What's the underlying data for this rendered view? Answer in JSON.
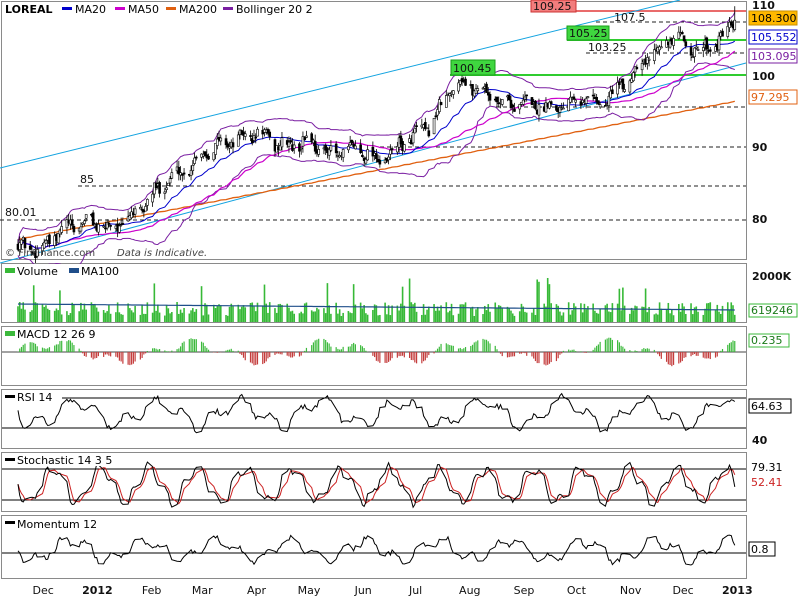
{
  "window": {
    "watermark": "© FinFinance.com",
    "notice": "Data is Indicative."
  },
  "x_axis": {
    "labels": [
      "Dec",
      "2012",
      "Feb",
      "Mar",
      "Apr",
      "May",
      "Jun",
      "Jul",
      "Aug",
      "Sep",
      "Oct",
      "Nov",
      "Dec",
      "2013"
    ],
    "bold_labels": [
      "2012",
      "2013"
    ]
  },
  "colors": {
    "ma20": "#0000cc",
    "ma50": "#cc00cc",
    "ma200": "#e06010",
    "bollinger": "#7a1fa2",
    "channel": "#13a3e0",
    "resistance": "#2fcc2f",
    "volume": "#37b937",
    "macd_pos": "#3cb93c",
    "macd_neg": "#c43c3c",
    "stoch_slow": "#cc2222"
  },
  "chart_data": [
    {
      "type": "candlestick",
      "title": "LOREAL",
      "legend": [
        "LOREAL",
        "MA20",
        "MA50",
        "MA200",
        "Bollinger 20 2"
      ],
      "legend_placement": "top-left",
      "ylim": [
        76,
        110.5
      ],
      "y_ticks": [
        80,
        90,
        100,
        110
      ],
      "grid": false,
      "series": [
        {
          "name": "LOREAL",
          "x": [
            "2011-11-26",
            "2011-12-10",
            "2011-12-24",
            "2012-01-07",
            "2012-01-21",
            "2012-02-04",
            "2012-02-18",
            "2012-03-03",
            "2012-03-17",
            "2012-03-31",
            "2012-04-14",
            "2012-04-28",
            "2012-05-12",
            "2012-05-26",
            "2012-06-09",
            "2012-06-23",
            "2012-07-07",
            "2012-07-21",
            "2012-08-04",
            "2012-08-18",
            "2012-09-01",
            "2012-09-15",
            "2012-09-29",
            "2012-10-13",
            "2012-10-27",
            "2012-11-10",
            "2012-11-24",
            "2012-12-08",
            "2012-12-22",
            "2013-01-05",
            "2013-01-12"
          ],
          "close": [
            78,
            77,
            80,
            81,
            80,
            82,
            86,
            88,
            91,
            92,
            93,
            91,
            92,
            90,
            91,
            89,
            92,
            94,
            100,
            99,
            97,
            97,
            96.5,
            98,
            97,
            100,
            104,
            106,
            104,
            106,
            108.3
          ]
        },
        {
          "name": "MA20",
          "last": 105.552
        },
        {
          "name": "MA50",
          "last": 103.095
        },
        {
          "name": "MA200",
          "last": 97.295
        }
      ],
      "levels": [
        {
          "label": "109.25",
          "boxed": true
        },
        {
          "label": "107.5",
          "boxed": false
        },
        {
          "label": "105.25",
          "boxed": true
        },
        {
          "label": "103.25",
          "boxed": false
        },
        {
          "label": "100.45",
          "boxed": true
        },
        {
          "label": "85",
          "boxed": false
        },
        {
          "label": "80.01",
          "boxed": false
        }
      ],
      "price_tags": [
        "108.300",
        "105.552",
        "103.095",
        "97.295"
      ]
    },
    {
      "type": "bar",
      "title": "Volume",
      "legend": [
        "Volume",
        "MA100"
      ],
      "y_ticks": [
        "2000K"
      ],
      "last_value": "619246"
    },
    {
      "type": "bar",
      "title": "MACD 12 26 9",
      "last_value": "0.235"
    },
    {
      "type": "line",
      "title": "RSI 14",
      "y_ticks": [
        "40"
      ],
      "last_value": "64.63"
    },
    {
      "type": "line",
      "title": "Stochastic 14 3 5",
      "last_values": [
        "79.31",
        "52.41"
      ]
    },
    {
      "type": "line",
      "title": "Momentum 12",
      "last_value": "0.8"
    }
  ]
}
